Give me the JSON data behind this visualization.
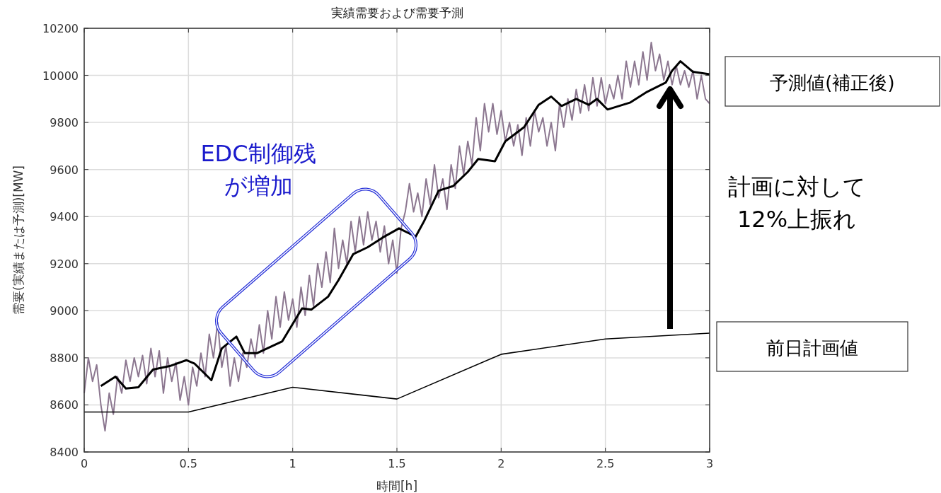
{
  "chart_data": {
    "type": "line",
    "title": "実績需要および需要予測",
    "xlabel": "時間[h]",
    "ylabel": "需要(実績または予測)[MW]",
    "xlim": [
      0,
      3
    ],
    "xticks": [
      0,
      0.5,
      1,
      1.5,
      2,
      2.5,
      3
    ],
    "ylim": [
      8400,
      10200
    ],
    "yticks": [
      8400,
      8600,
      8800,
      9000,
      9200,
      9400,
      9600,
      9800,
      10000,
      10200
    ],
    "grid": true,
    "series": [
      {
        "color": "#8c7790",
        "x": [
          0,
          0.02,
          0.04,
          0.06,
          0.08,
          0.1,
          0.12,
          0.14,
          0.16,
          0.18,
          0.2,
          0.22,
          0.24,
          0.26,
          0.28,
          0.3,
          0.32,
          0.34,
          0.36,
          0.38,
          0.4,
          0.42,
          0.44,
          0.46,
          0.48,
          0.5,
          0.52,
          0.54,
          0.56,
          0.58,
          0.6,
          0.62,
          0.64,
          0.66,
          0.68,
          0.7,
          0.72,
          0.74,
          0.76,
          0.78,
          0.8,
          0.82,
          0.84,
          0.86,
          0.88,
          0.9,
          0.92,
          0.94,
          0.96,
          0.98,
          1,
          1.02,
          1.04,
          1.06,
          1.08,
          1.1,
          1.12,
          1.14,
          1.16,
          1.18,
          1.2,
          1.22,
          1.24,
          1.26,
          1.28,
          1.3,
          1.32,
          1.34,
          1.36,
          1.38,
          1.4,
          1.42,
          1.44,
          1.46,
          1.48,
          1.5,
          1.52,
          1.54,
          1.56,
          1.58,
          1.6,
          1.62,
          1.64,
          1.66,
          1.68,
          1.7,
          1.72,
          1.74,
          1.76,
          1.78,
          1.8,
          1.82,
          1.84,
          1.86,
          1.88,
          1.9,
          1.92,
          1.94,
          1.96,
          1.98,
          2,
          2.02,
          2.04,
          2.06,
          2.08,
          2.1,
          2.12,
          2.14,
          2.16,
          2.18,
          2.2,
          2.22,
          2.24,
          2.26,
          2.28,
          2.3,
          2.32,
          2.34,
          2.36,
          2.38,
          2.4,
          2.42,
          2.44,
          2.46,
          2.48,
          2.5,
          2.52,
          2.54,
          2.56,
          2.58,
          2.6,
          2.62,
          2.64,
          2.66,
          2.68,
          2.7,
          2.72,
          2.74,
          2.76,
          2.78,
          2.8,
          2.82,
          2.84,
          2.86,
          2.88,
          2.9,
          2.92,
          2.94,
          2.96,
          2.98,
          3
        ],
        "values": [
          8650,
          8800,
          8700,
          8770,
          8600,
          8490,
          8650,
          8560,
          8720,
          8650,
          8790,
          8700,
          8800,
          8720,
          8810,
          8690,
          8840,
          8720,
          8830,
          8650,
          8800,
          8700,
          8780,
          8620,
          8720,
          8600,
          8760,
          8680,
          8820,
          8720,
          8900,
          8800,
          8950,
          8760,
          8850,
          8680,
          8800,
          8700,
          8820,
          8760,
          8880,
          8800,
          8940,
          8820,
          9000,
          8880,
          9060,
          8930,
          9080,
          8960,
          9050,
          8930,
          9100,
          8980,
          9150,
          9020,
          9200,
          9100,
          9250,
          9120,
          9350,
          9180,
          9300,
          9200,
          9380,
          9250,
          9400,
          9280,
          9420,
          9300,
          9380,
          9250,
          9360,
          9200,
          9300,
          9160,
          9350,
          9420,
          9540,
          9420,
          9500,
          9400,
          9560,
          9450,
          9620,
          9480,
          9560,
          9430,
          9620,
          9520,
          9700,
          9580,
          9720,
          9620,
          9820,
          9680,
          9880,
          9760,
          9880,
          9750,
          9850,
          9720,
          9800,
          9700,
          9790,
          9660,
          9820,
          9700,
          9850,
          9760,
          9820,
          9700,
          9800,
          9680,
          9880,
          9780,
          9900,
          9810,
          9940,
          9840,
          9960,
          9850,
          9990,
          9870,
          9990,
          9880,
          9960,
          9900,
          10000,
          9900,
          10060,
          9950,
          10060,
          9960,
          10100,
          9980,
          10140,
          10020,
          10090,
          9980,
          10060,
          9960,
          10040,
          9960,
          10020,
          9950,
          10020,
          9900,
          10000,
          9900,
          9880
        ]
      },
      {
        "name": "予測値(補正後)",
        "color": "#000000",
        "x": [
          0.08,
          0.15,
          0.2,
          0.26,
          0.33,
          0.41,
          0.49,
          0.53,
          0.61,
          0.66,
          0.73,
          0.77,
          0.83,
          0.95,
          1.045,
          1.09,
          1.17,
          1.22,
          1.29,
          1.36,
          1.43,
          1.51,
          1.59,
          1.63,
          1.7,
          1.77,
          1.84,
          1.89,
          1.97,
          2.02,
          2.11,
          2.18,
          2.24,
          2.29,
          2.36,
          2.42,
          2.46,
          2.51,
          2.62,
          2.7,
          2.79,
          2.82,
          2.86,
          2.92,
          3
        ],
        "values": [
          8680,
          8720,
          8670,
          8675,
          8750,
          8765,
          8790,
          8775,
          8705,
          8840,
          8890,
          8820,
          8820,
          8870,
          9010,
          9005,
          9060,
          9130,
          9240,
          9270,
          9310,
          9350,
          9315,
          9380,
          9510,
          9530,
          9590,
          9645,
          9635,
          9720,
          9780,
          9875,
          9910,
          9870,
          9900,
          9875,
          9900,
          9855,
          9885,
          9930,
          9970,
          10020,
          10060,
          10015,
          10005
        ]
      },
      {
        "name": "前日計画値",
        "color": "#000000",
        "x": [
          0,
          0.5,
          1,
          1.5,
          2,
          2.5,
          3
        ],
        "values": [
          8570,
          8570,
          8675,
          8625,
          8815,
          8880,
          8905
        ]
      }
    ],
    "annotations": [
      "EDC制御残",
      "が増加",
      "計画に対して",
      "12%上振れ"
    ]
  }
}
